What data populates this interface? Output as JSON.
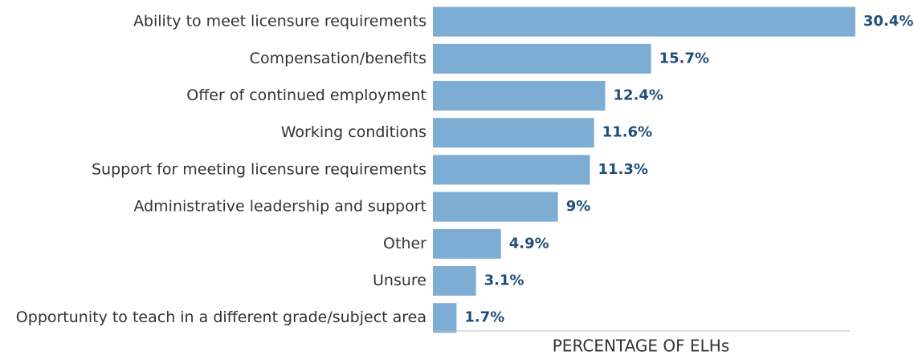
{
  "chart_data": {
    "type": "hbar",
    "categories": [
      "Ability to meet licensure requirements",
      "Compensation/benefits",
      "Offer of continued employment",
      "Working conditions",
      "Support for meeting licensure requirements",
      "Administrative leadership and support",
      "Other",
      "Unsure",
      "Opportunity to teach in a different grade/subject area"
    ],
    "values": [
      30.4,
      15.7,
      12.4,
      11.6,
      11.3,
      9,
      4.9,
      3.1,
      1.7
    ],
    "value_labels": [
      "30.4%",
      "15.7%",
      "12.4%",
      "11.6%",
      "11.3%",
      "9%",
      "4.9%",
      "3.1%",
      "1.7%"
    ],
    "color": "#7eadd4",
    "xlim": [
      0,
      30
    ],
    "x_label": "PERCENTAGE OF ELHs"
  }
}
